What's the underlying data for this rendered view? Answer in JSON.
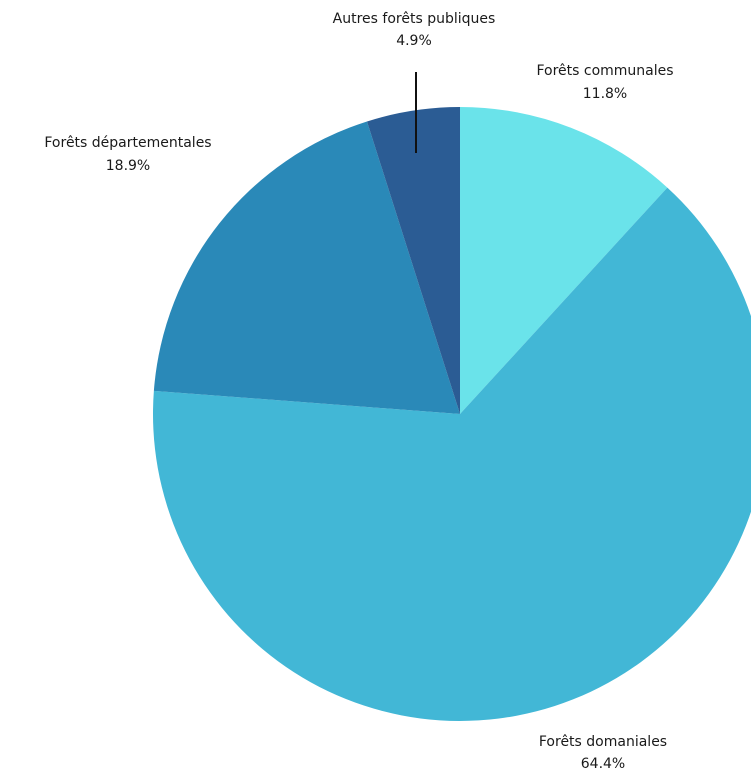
{
  "chart_data": {
    "type": "pie",
    "start_angle_deg": 0,
    "direction": "clockwise",
    "slices": [
      {
        "name": "Forêts communales",
        "value": 11.8,
        "value_label": "11.8%",
        "color": "#6ae3ea"
      },
      {
        "name": "Forêts domaniales",
        "value": 64.4,
        "value_label": "64.4%",
        "color": "#42b7d6"
      },
      {
        "name": "Forêts départementales",
        "value": 18.9,
        "value_label": "18.9%",
        "color": "#2a89b8"
      },
      {
        "name": "Autres forêts publiques",
        "value": 4.9,
        "value_label": "4.9%",
        "color": "#2b5c94"
      }
    ],
    "legend": "none"
  }
}
